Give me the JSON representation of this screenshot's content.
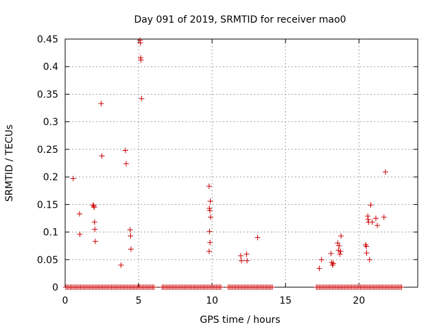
{
  "chart_data": {
    "type": "scatter",
    "title": "Day 091 of 2019, SRMTID for receiver mao0",
    "xlabel": "GPS time / hours",
    "ylabel": "SRMTID / TECUs",
    "xlim": [
      0,
      24
    ],
    "ylim": [
      0,
      0.45
    ],
    "xticks": [
      0,
      5,
      10,
      15,
      20
    ],
    "yticks": [
      0,
      0.05,
      0.1,
      0.15,
      0.2,
      0.25,
      0.3,
      0.35,
      0.4,
      0.45
    ],
    "xtick_labels": [
      "0",
      "5",
      "10",
      "15",
      "20"
    ],
    "ytick_labels": [
      "0",
      "0.05",
      "0.1",
      "0.15",
      "0.2",
      "0.25",
      "0.3",
      "0.35",
      "0.4",
      "0.45"
    ],
    "grid": true,
    "marker": "+",
    "color": "#cc0000",
    "series": [
      {
        "name": "SRMTID",
        "points": [
          [
            0.55,
            0.197
          ],
          [
            0.98,
            0.133
          ],
          [
            1.0,
            0.096
          ],
          [
            1.9,
            0.149
          ],
          [
            1.95,
            0.147
          ],
          [
            1.97,
            0.145
          ],
          [
            2.0,
            0.118
          ],
          [
            2.02,
            0.105
          ],
          [
            2.05,
            0.083
          ],
          [
            2.45,
            0.333
          ],
          [
            2.5,
            0.238
          ],
          [
            3.8,
            0.04
          ],
          [
            4.1,
            0.248
          ],
          [
            4.15,
            0.224
          ],
          [
            4.42,
            0.104
          ],
          [
            4.45,
            0.093
          ],
          [
            4.48,
            0.069
          ],
          [
            5.1,
            0.448
          ],
          [
            5.12,
            0.443
          ],
          [
            5.14,
            0.416
          ],
          [
            5.16,
            0.412
          ],
          [
            5.2,
            0.342
          ],
          [
            9.8,
            0.183
          ],
          [
            9.82,
            0.143
          ],
          [
            9.85,
            0.139
          ],
          [
            9.88,
            0.156
          ],
          [
            9.9,
            0.127
          ],
          [
            9.83,
            0.101
          ],
          [
            9.86,
            0.081
          ],
          [
            9.8,
            0.065
          ],
          [
            11.95,
            0.057
          ],
          [
            12.0,
            0.048
          ],
          [
            12.35,
            0.06
          ],
          [
            12.38,
            0.048
          ],
          [
            13.1,
            0.09
          ],
          [
            17.3,
            0.034
          ],
          [
            17.45,
            0.05
          ],
          [
            18.1,
            0.061
          ],
          [
            18.15,
            0.045
          ],
          [
            18.2,
            0.04
          ],
          [
            18.25,
            0.043
          ],
          [
            18.55,
            0.08
          ],
          [
            18.6,
            0.067
          ],
          [
            18.65,
            0.075
          ],
          [
            18.7,
            0.06
          ],
          [
            18.75,
            0.065
          ],
          [
            18.78,
            0.093
          ],
          [
            20.45,
            0.077
          ],
          [
            20.5,
            0.074
          ],
          [
            20.52,
            0.062
          ],
          [
            20.6,
            0.129
          ],
          [
            20.62,
            0.123
          ],
          [
            20.65,
            0.118
          ],
          [
            20.72,
            0.05
          ],
          [
            20.8,
            0.149
          ],
          [
            20.9,
            0.118
          ],
          [
            21.15,
            0.125
          ],
          [
            21.25,
            0.112
          ],
          [
            21.7,
            0.127
          ],
          [
            21.8,
            0.209
          ]
        ]
      },
      {
        "name": "baseline (zero values)",
        "ranges": [
          [
            0.05,
            6.1
          ],
          [
            6.6,
            10.6
          ],
          [
            11.1,
            14.1
          ],
          [
            17.1,
            22.95
          ]
        ],
        "step": 0.1,
        "value": 0
      }
    ]
  }
}
